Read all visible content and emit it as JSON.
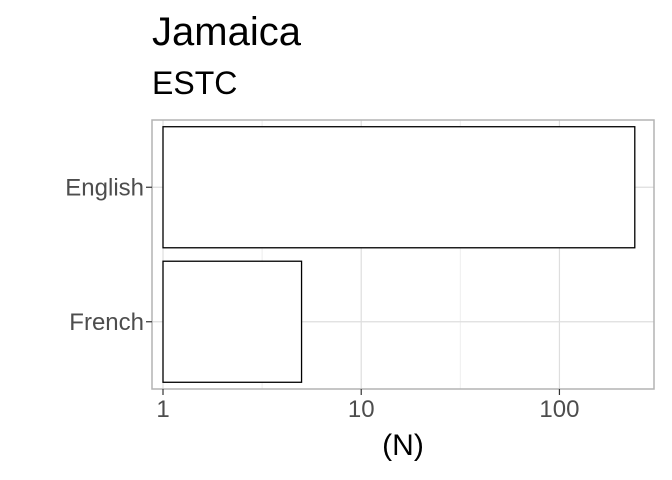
{
  "chart_data": {
    "type": "bar",
    "orientation": "horizontal",
    "title": "Jamaica",
    "subtitle": "ESTC",
    "categories": [
      "English",
      "French"
    ],
    "values": [
      240,
      5
    ],
    "xlabel": "(N)",
    "ylabel": "",
    "x_scale": "log10",
    "xlim": [
      0.88,
      300
    ],
    "x_ticks": [
      1,
      10,
      100
    ],
    "x_tick_labels": [
      "1",
      "10",
      "100"
    ],
    "bar_baseline": 1,
    "grid": true,
    "colors": {
      "bar_fill": "#ffffff",
      "bar_stroke": "#000000",
      "grid_major": "#dedede",
      "grid_minor": "#eeeeee",
      "panel_border": "#b3b3b3"
    }
  }
}
